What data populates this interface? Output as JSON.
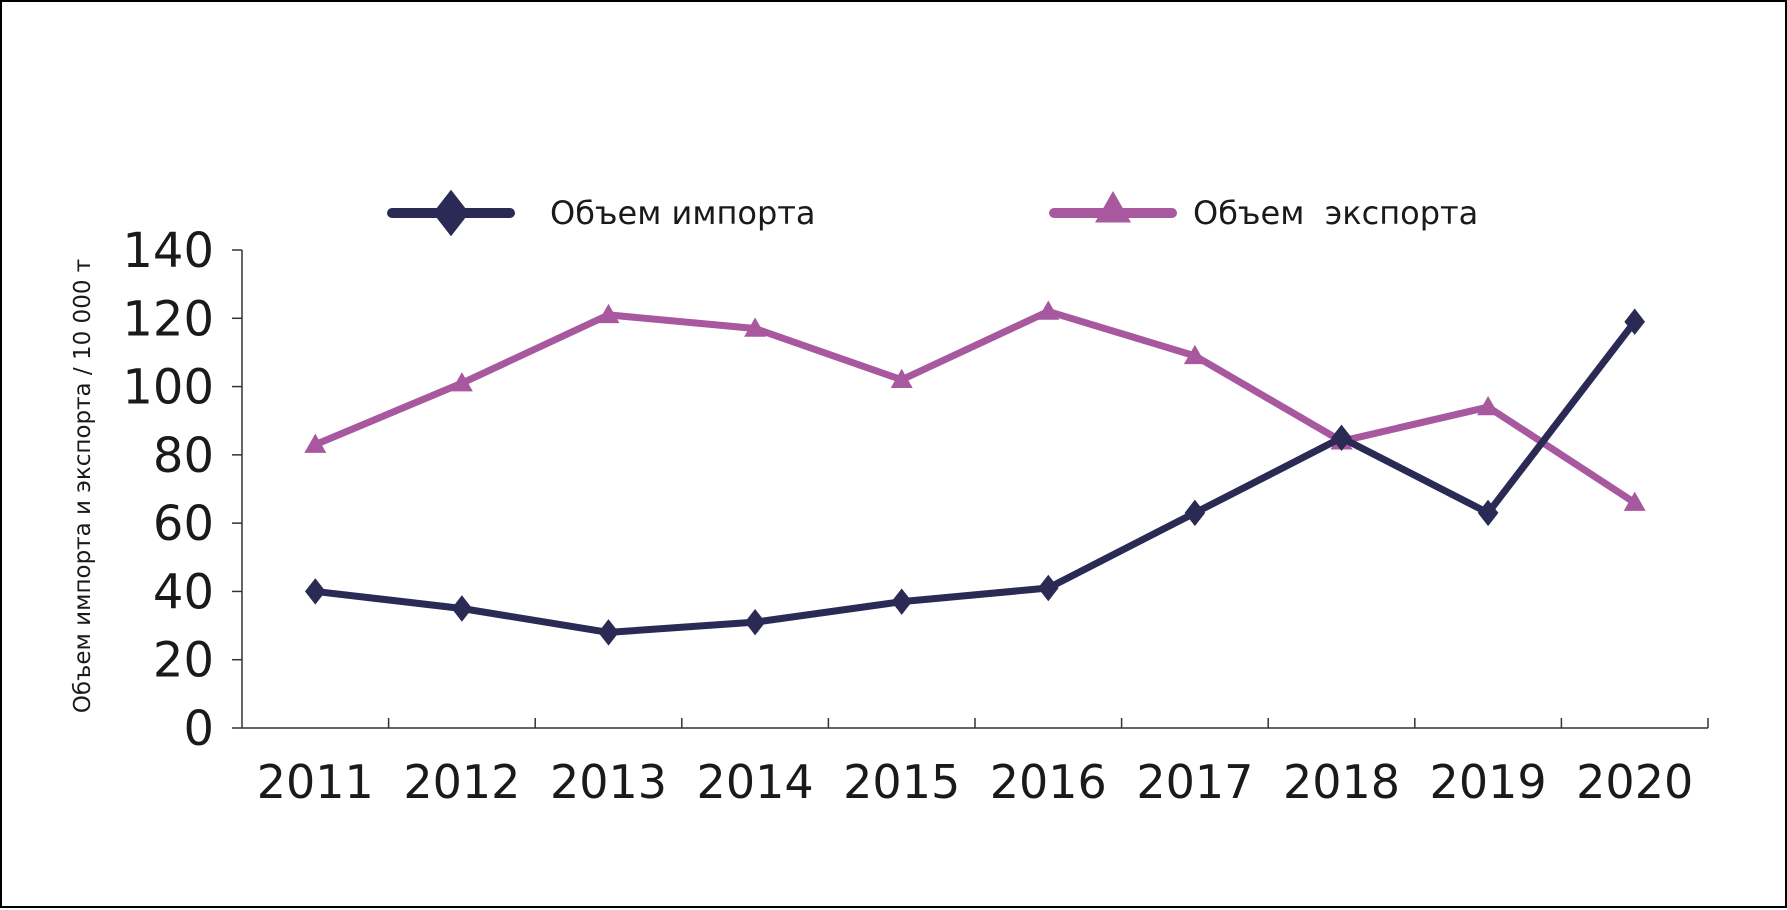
{
  "chart_data": {
    "type": "line",
    "title": "",
    "xlabel": "",
    "ylabel": "Объем импорта и  экспорта / 10 000 т",
    "categories": [
      "2011",
      "2012",
      "2013",
      "2014",
      "2015",
      "2016",
      "2017",
      "2018",
      "2019",
      "2020"
    ],
    "ylim": [
      0,
      140
    ],
    "yticks": [
      "0",
      "20",
      "40",
      "60",
      "80",
      "100",
      "120",
      "140"
    ],
    "grid": false,
    "legend_position": "top",
    "series": [
      {
        "name": "Объем импорта",
        "values": [
          40,
          35,
          28,
          31,
          37,
          41,
          63,
          85,
          63,
          119
        ],
        "color": "#2b2a55",
        "marker": "diamond"
      },
      {
        "name": "Объем  экспорта",
        "values": [
          83,
          101,
          121,
          117,
          102,
          122,
          109,
          84,
          94,
          66
        ],
        "color": "#a8589f",
        "marker": "triangle"
      }
    ]
  }
}
